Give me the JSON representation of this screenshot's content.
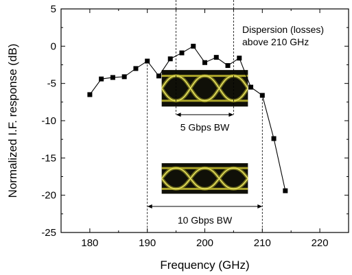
{
  "chart_data": {
    "type": "line",
    "title": "",
    "xlabel": "Frequency (GHz)",
    "ylabel": "Normalized I.F. response (dB)",
    "xlim": [
      175,
      225
    ],
    "ylim": [
      -25,
      5
    ],
    "xticks": [
      180,
      190,
      200,
      210,
      220
    ],
    "yticks": [
      5,
      0,
      -5,
      -10,
      -15,
      -20,
      -25
    ],
    "grid": false,
    "series": [
      {
        "marker": "square",
        "x": [
          180,
          182,
          184,
          186,
          188,
          190,
          192,
          194,
          196,
          198,
          200,
          202,
          204,
          206,
          208,
          210,
          212,
          214
        ],
        "y": [
          -6.5,
          -4.4,
          -4.2,
          -4.1,
          -3.0,
          -2.0,
          -4.0,
          -1.7,
          -0.9,
          0.0,
          -2.2,
          -1.5,
          -2.6,
          -1.6,
          -5.5,
          -6.6,
          -12.4,
          -19.4
        ]
      }
    ],
    "annotations": [
      {
        "id": "dispersion",
        "lines": [
          "Dispersion (losses)",
          "above 210 GHz"
        ]
      },
      {
        "id": "bw5",
        "text": "5 Gbps BW",
        "x_from": 195,
        "x_to": 205
      },
      {
        "id": "bw10",
        "text": "10 Gbps BW",
        "x_from": 190,
        "x_to": 210
      }
    ],
    "eye_diagrams": [
      {
        "id": "eye-5gbps",
        "x_from": 192.5,
        "x_to": 207.5,
        "y_top": -3.2,
        "y_bottom": -8.1
      },
      {
        "id": "eye-10gbps",
        "x_from": 192.5,
        "x_to": 207.5,
        "y_top": -15.7,
        "y_bottom": -19.8
      }
    ]
  }
}
